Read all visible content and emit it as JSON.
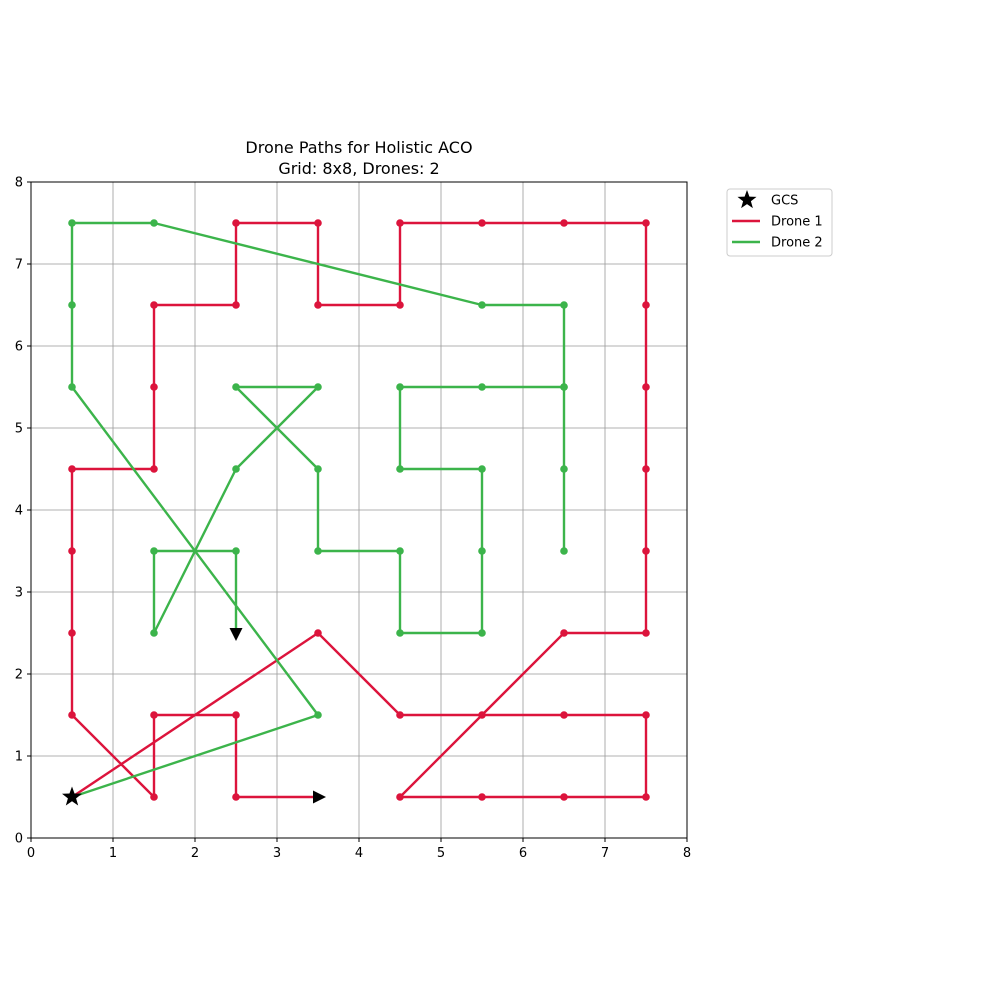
{
  "chart_data": {
    "type": "line",
    "title": "Drone Paths for Holistic ACO",
    "subtitle": "Grid: 8x8, Drones: 2",
    "xlabel": "",
    "ylabel": "",
    "xlim": [
      0,
      8
    ],
    "ylim": [
      0,
      8
    ],
    "xticks": [
      "0",
      "1",
      "2",
      "3",
      "4",
      "5",
      "6",
      "7",
      "8"
    ],
    "yticks": [
      "0",
      "1",
      "2",
      "3",
      "4",
      "5",
      "6",
      "7",
      "8"
    ],
    "grid": true,
    "legend_position": "outside-top-right",
    "gcs": {
      "name": "GCS",
      "x": 0.5,
      "y": 0.5,
      "color": "#000000"
    },
    "series": [
      {
        "name": "Drone 1",
        "color": "#dc143c",
        "points": [
          [
            0.5,
            0.5
          ],
          [
            3.5,
            2.5
          ],
          [
            4.5,
            1.5
          ],
          [
            5.5,
            1.5
          ],
          [
            6.5,
            1.5
          ],
          [
            7.5,
            1.5
          ],
          [
            7.5,
            0.5
          ],
          [
            6.5,
            0.5
          ],
          [
            5.5,
            0.5
          ],
          [
            4.5,
            0.5
          ],
          [
            6.5,
            2.5
          ],
          [
            7.5,
            2.5
          ],
          [
            7.5,
            3.5
          ],
          [
            7.5,
            4.5
          ],
          [
            7.5,
            5.5
          ],
          [
            7.5,
            6.5
          ],
          [
            7.5,
            7.5
          ],
          [
            6.5,
            7.5
          ],
          [
            5.5,
            7.5
          ],
          [
            4.5,
            7.5
          ],
          [
            4.5,
            6.5
          ],
          [
            3.5,
            6.5
          ],
          [
            3.5,
            7.5
          ],
          [
            2.5,
            7.5
          ],
          [
            2.5,
            6.5
          ],
          [
            1.5,
            6.5
          ],
          [
            1.5,
            5.5
          ],
          [
            1.5,
            4.5
          ],
          [
            0.5,
            4.5
          ],
          [
            0.5,
            3.5
          ],
          [
            0.5,
            2.5
          ],
          [
            0.5,
            1.5
          ],
          [
            1.5,
            0.5
          ],
          [
            1.5,
            1.5
          ],
          [
            2.5,
            1.5
          ],
          [
            2.5,
            0.5
          ],
          [
            3.5,
            0.5
          ]
        ],
        "end_arrow": true
      },
      {
        "name": "Drone 2",
        "color": "#3cb44b",
        "points": [
          [
            0.5,
            0.5
          ],
          [
            3.5,
            1.5
          ],
          [
            0.5,
            5.5
          ],
          [
            0.5,
            6.5
          ],
          [
            0.5,
            7.5
          ],
          [
            1.5,
            7.5
          ],
          [
            5.5,
            6.5
          ],
          [
            6.5,
            6.5
          ],
          [
            6.5,
            5.5
          ],
          [
            6.5,
            4.5
          ],
          [
            6.5,
            3.5
          ],
          [
            6.5,
            5.5
          ],
          [
            5.5,
            5.5
          ],
          [
            4.5,
            5.5
          ],
          [
            4.5,
            4.5
          ],
          [
            5.5,
            4.5
          ],
          [
            5.5,
            3.5
          ],
          [
            5.5,
            2.5
          ],
          [
            4.5,
            2.5
          ],
          [
            4.5,
            3.5
          ],
          [
            3.5,
            3.5
          ],
          [
            3.5,
            4.5
          ],
          [
            2.5,
            5.5
          ],
          [
            3.5,
            5.5
          ],
          [
            2.5,
            4.5
          ],
          [
            1.5,
            2.5
          ],
          [
            1.5,
            3.5
          ],
          [
            2.5,
            3.5
          ],
          [
            2.5,
            2.5
          ]
        ],
        "end_arrow": true
      }
    ]
  }
}
